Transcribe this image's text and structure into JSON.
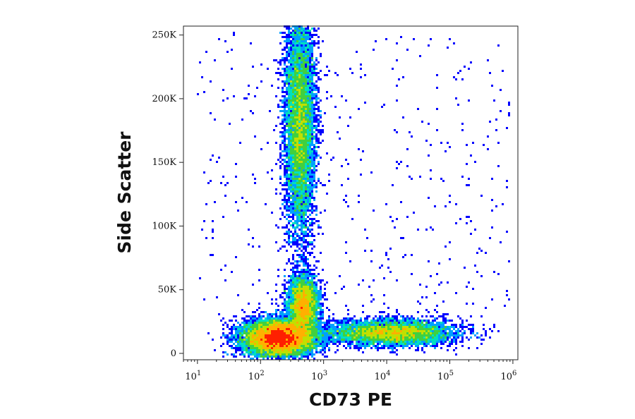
{
  "chart_data": {
    "type": "scatter",
    "subtype": "flow-cytometry-density-dot-plot",
    "xlabel": "CD73 PE",
    "ylabel": "Side Scatter",
    "x_scale": "log",
    "xlim": [
      6,
      1200000
    ],
    "ylim": [
      -5000,
      257000
    ],
    "x_ticks": [
      {
        "value": 10,
        "base": "10",
        "exp": "1"
      },
      {
        "value": 100,
        "base": "10",
        "exp": "2"
      },
      {
        "value": 1000,
        "base": "10",
        "exp": "3"
      },
      {
        "value": 10000,
        "base": "10",
        "exp": "4"
      },
      {
        "value": 100000,
        "base": "10",
        "exp": "5"
      },
      {
        "value": 1000000,
        "base": "10",
        "exp": "6"
      }
    ],
    "y_ticks": [
      {
        "value": 0,
        "label": "0"
      },
      {
        "value": 50000,
        "label": "50K"
      },
      {
        "value": 100000,
        "label": "100K"
      },
      {
        "value": 150000,
        "label": "150K"
      },
      {
        "value": 200000,
        "label": "200K"
      },
      {
        "value": 250000,
        "label": "250K"
      }
    ],
    "density_colors": [
      "#0000ff",
      "#00a0ff",
      "#00e0c0",
      "#40d040",
      "#c0e000",
      "#ffb000",
      "#ff2000"
    ],
    "populations": [
      {
        "x": 200,
        "y": 12000,
        "x_spread_decades": 0.28,
        "y_spread": 7000,
        "weight": 1.0
      },
      {
        "x": 480,
        "y": 38000,
        "x_spread_decades": 0.12,
        "y_spread": 11000,
        "weight": 0.35
      },
      {
        "x": 420,
        "y": 180000,
        "x_spread_decades": 0.12,
        "y_spread": 45000,
        "weight": 0.65
      },
      {
        "x": 12000,
        "y": 16000,
        "x_spread_decades": 0.5,
        "y_spread": 5000,
        "weight": 0.45
      }
    ],
    "grid": false,
    "legend": "none"
  }
}
